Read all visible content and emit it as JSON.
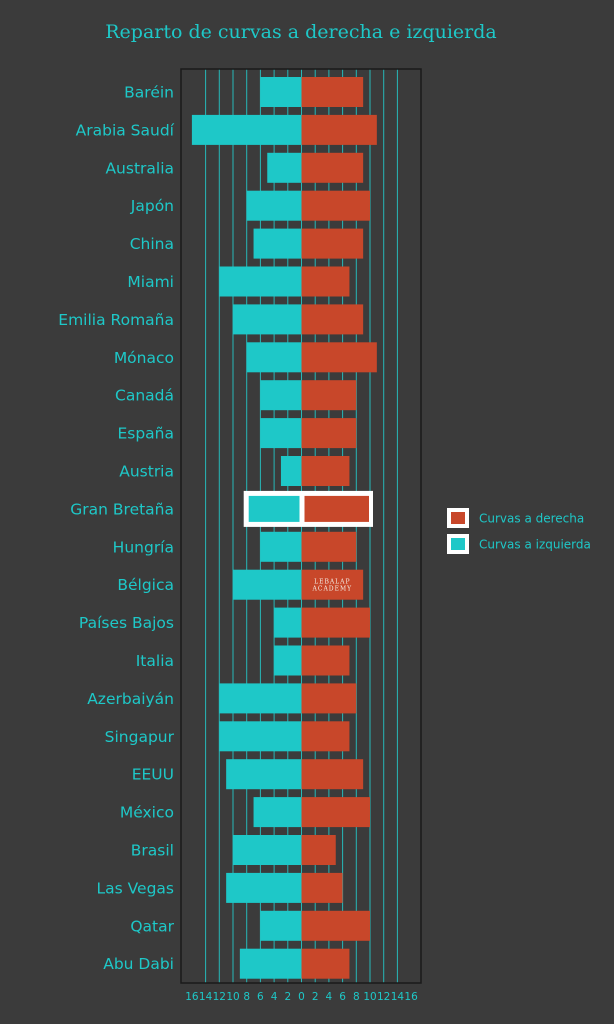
{
  "chart_data": {
    "type": "bar",
    "orientation": "horizontal-diverging",
    "title": "Reparto de curvas a derecha e izquierda",
    "categories": [
      "Baréin",
      "Arabia Saudí",
      "Australia",
      "Japón",
      "China",
      "Miami",
      "Emilia Romaña",
      "Mónaco",
      "Canadá",
      "España",
      "Austria",
      "Gran Bretaña",
      "Hungría",
      "Bélgica",
      "Países Bajos",
      "Italia",
      "Azerbaiyán",
      "Singapur",
      "EEUU",
      "México",
      "Brasil",
      "Las Vegas",
      "Qatar",
      "Abu Dabi"
    ],
    "series": [
      {
        "name": "Curvas a derecha",
        "color": "#c8472a",
        "values": [
          9,
          11,
          9,
          10,
          9,
          7,
          9,
          11,
          8,
          8,
          7,
          10,
          8,
          9,
          10,
          7,
          8,
          7,
          9,
          10,
          5,
          6,
          10,
          7
        ]
      },
      {
        "name": "Curvas a izquierda",
        "color": "#1ec8c8",
        "values": [
          6,
          16,
          5,
          8,
          7,
          12,
          10,
          8,
          6,
          6,
          3,
          8,
          6,
          10,
          4,
          4,
          12,
          12,
          11,
          7,
          10,
          11,
          6,
          9
        ]
      }
    ],
    "highlighted_category": "Gran Bretaña",
    "xlim": [
      -16,
      16
    ],
    "x_ticks": [
      "16",
      "14",
      "12",
      "10",
      "8",
      "6",
      "4",
      "2",
      "0",
      "2",
      "4",
      "6",
      "8",
      "10",
      "12",
      "14",
      "16"
    ],
    "grid": true,
    "legend_position": "right",
    "watermark": "LEBALAP ACADEMY"
  }
}
